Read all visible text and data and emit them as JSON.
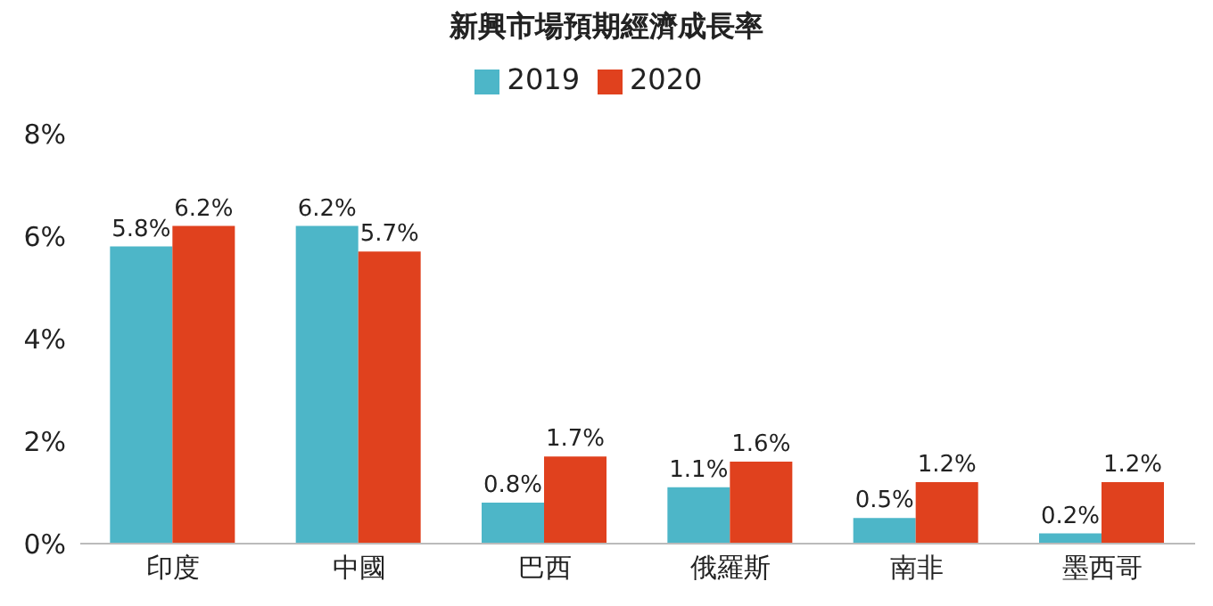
{
  "chart_data": {
    "type": "bar",
    "title": "新興市場預期經濟成長率",
    "categories": [
      "印度",
      "中國",
      "巴西",
      "俄羅斯",
      "南非",
      "墨西哥"
    ],
    "series": [
      {
        "name": "2019",
        "color": "#4db6c8",
        "values": [
          5.8,
          6.2,
          0.8,
          1.1,
          0.5,
          0.2
        ],
        "value_labels": [
          "5.8%",
          "6.2%",
          "0.8%",
          "1.1%",
          "0.5%",
          "0.2%"
        ]
      },
      {
        "name": "2020",
        "color": "#e0411e",
        "values": [
          6.2,
          5.7,
          1.7,
          1.6,
          1.2,
          1.2
        ],
        "value_labels": [
          "6.2%",
          "5.7%",
          "1.7%",
          "1.6%",
          "1.2%",
          "1.2%"
        ]
      }
    ],
    "ylim": [
      0,
      8
    ],
    "yticks": [
      {
        "value": 0,
        "label": "0%"
      },
      {
        "value": 2,
        "label": "2%"
      },
      {
        "value": 4,
        "label": "4%"
      },
      {
        "value": 6,
        "label": "6%"
      },
      {
        "value": 8,
        "label": "8%"
      }
    ],
    "grid": false,
    "legend": "top"
  }
}
